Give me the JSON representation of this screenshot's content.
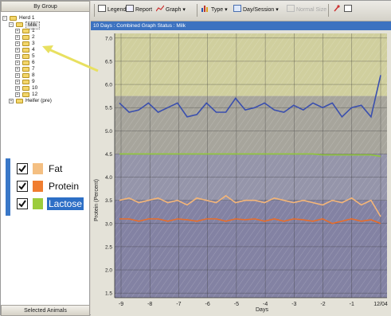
{
  "left_panel": {
    "header": "By Group",
    "footer": "Selected Animals",
    "tree": {
      "root": "Herd 1",
      "selected_group": "Milk",
      "children": [
        "1",
        "2",
        "3",
        "4",
        "5",
        "6",
        "7",
        "8",
        "9",
        "10",
        "12"
      ],
      "sibling": "Heifer (pre)"
    }
  },
  "legend": {
    "items": [
      {
        "label": "Fat",
        "color": "#f4bf82",
        "checked": true,
        "selected": false
      },
      {
        "label": "Protein",
        "color": "#f07d30",
        "checked": true,
        "selected": false
      },
      {
        "label": "Lactose",
        "color": "#9ccc3c",
        "checked": true,
        "selected": true
      }
    ]
  },
  "toolbar": {
    "legend": "Legend",
    "report": "Report",
    "graph": "Graph",
    "type": "Type",
    "day_session": "Day/Session",
    "normal_size": "Normal Size"
  },
  "infobar": {
    "title": "10 Days : Combined Graph   Status : Milk"
  },
  "colors": {
    "band_top": "#cfcd9b",
    "band_mid": "#a3a199",
    "band_low": "#9090a8",
    "band_bottom": "#7d7ca0",
    "grid": "#333333",
    "blue_series": "#3a4fae",
    "green_series": "#8fc63a",
    "fat_series": "#f4b577",
    "protein_series": "#ea6c28"
  },
  "chart_data": {
    "type": "line",
    "ylabel": "Protein  (Percent)",
    "xlabel": "Days",
    "ylim": [
      1.4,
      7.1
    ],
    "yticks": [
      "7.0",
      "6.5",
      "6.0",
      "5.5",
      "5.0",
      "4.5",
      "4.0",
      "3.5",
      "3.0",
      "2.5",
      "2.0",
      "1.5"
    ],
    "xticks": [
      "-9",
      "-8",
      "-7",
      "-6",
      "-5",
      "-4",
      "-3",
      "-2",
      "-1",
      "12/04"
    ],
    "grid": true,
    "series": [
      {
        "color": "#3a4fae",
        "values": [
          5.6,
          5.4,
          5.45,
          5.6,
          5.4,
          5.5,
          5.6,
          5.3,
          5.35,
          5.6,
          5.4,
          5.4,
          5.7,
          5.45,
          5.5,
          5.6,
          5.45,
          5.4,
          5.55,
          5.45,
          5.6,
          5.5,
          5.6,
          5.3,
          5.5,
          5.55,
          5.3,
          6.2
        ]
      },
      {
        "color": "#8fc63a",
        "values": [
          4.5,
          4.5,
          4.5,
          4.5,
          4.5,
          4.5,
          4.5,
          4.5,
          4.5,
          4.5,
          4.5,
          4.5,
          4.5,
          4.5,
          4.5,
          4.5,
          4.5,
          4.5,
          4.5,
          4.5,
          4.5,
          4.48,
          4.48,
          4.48,
          4.48,
          4.48,
          4.48,
          4.45
        ]
      },
      {
        "color": "#f4b577",
        "values": [
          3.5,
          3.55,
          3.45,
          3.5,
          3.55,
          3.45,
          3.5,
          3.4,
          3.55,
          3.5,
          3.45,
          3.6,
          3.45,
          3.5,
          3.5,
          3.45,
          3.55,
          3.5,
          3.45,
          3.5,
          3.45,
          3.4,
          3.5,
          3.45,
          3.55,
          3.4,
          3.5,
          3.15
        ]
      },
      {
        "color": "#ea6c28",
        "values": [
          3.1,
          3.1,
          3.05,
          3.1,
          3.1,
          3.05,
          3.1,
          3.08,
          3.05,
          3.1,
          3.1,
          3.05,
          3.1,
          3.08,
          3.1,
          3.05,
          3.1,
          3.05,
          3.1,
          3.08,
          3.05,
          3.1,
          3.0,
          3.05,
          3.1,
          3.05,
          3.08,
          3.0
        ]
      }
    ],
    "bands": [
      {
        "from": 7.1,
        "to": 5.75,
        "color": "#cfcd9b"
      },
      {
        "from": 5.75,
        "to": 4.5,
        "color": "#a3a199"
      },
      {
        "from": 4.5,
        "to": 3.5,
        "color": "#9090a8"
      },
      {
        "from": 3.5,
        "to": 1.4,
        "color": "#7d7ca0"
      }
    ]
  }
}
